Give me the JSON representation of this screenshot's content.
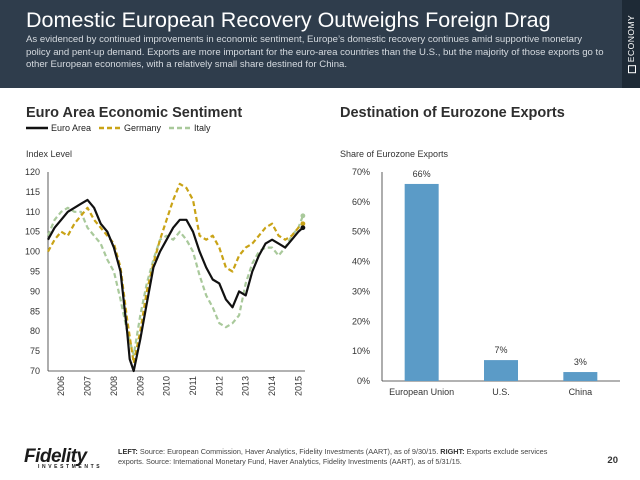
{
  "header": {
    "title": "Domestic European Recovery Outweighs Foreign Drag",
    "subtitle": "As evidenced by continued improvements in economic sentiment, Europe’s domestic recovery continues amid supportive monetary policy and pent-up demand. Exports are more important for the euro-area countries than the U.S., but the majority of those exports go to other European economies, with a relatively small share destined for China.",
    "side_label": "ECONOMY"
  },
  "footer": {
    "logo": "Fidelity",
    "logo_sub": "INVESTMENTS",
    "left_label": "LEFT:",
    "left_text": " Source: European Commission, Haver Analytics, Fidelity Investments (AART), as of 9/30/15. ",
    "right_label": "RIGHT:",
    "right_text": " Exports exclude services exports. Source: International Monetary Fund, Haver Analytics, Fidelity Investments (AART), as of 5/31/15.",
    "page_number": "20"
  },
  "colors": {
    "euro_area": "#111111",
    "germany": "#c9a316",
    "italy": "#a9c99b",
    "bar": "#5b9bc7",
    "header_bg": "#2f3d4c"
  },
  "chart_data": [
    {
      "type": "line",
      "title": "Euro Area Economic Sentiment",
      "ylabel": "Index Level",
      "xlabel": "",
      "ylim": [
        70,
        120
      ],
      "yticks": [
        70,
        75,
        80,
        85,
        90,
        95,
        100,
        105,
        110,
        115,
        120
      ],
      "xlim": [
        2006,
        2015.75
      ],
      "xticks": [
        "2006",
        "2007",
        "2008",
        "2009",
        "2010",
        "2011",
        "2012",
        "2013",
        "2014",
        "2015"
      ],
      "grid": false,
      "legend_position": "top-left",
      "series": [
        {
          "name": "Euro Area",
          "style": "solid",
          "x": [
            2006,
            2006.25,
            2006.5,
            2006.75,
            2007,
            2007.25,
            2007.5,
            2007.75,
            2008,
            2008.25,
            2008.5,
            2008.75,
            2009,
            2009.1,
            2009.25,
            2009.5,
            2009.75,
            2010,
            2010.25,
            2010.5,
            2010.75,
            2011,
            2011.25,
            2011.5,
            2011.75,
            2012,
            2012.25,
            2012.5,
            2012.75,
            2013,
            2013.25,
            2013.5,
            2013.75,
            2014,
            2014.25,
            2014.5,
            2014.75,
            2015,
            2015.25,
            2015.5,
            2015.67
          ],
          "values": [
            103,
            106,
            108,
            110,
            111,
            112,
            113,
            111,
            107,
            105,
            101,
            95,
            80,
            73,
            70,
            78,
            87,
            96,
            100,
            103,
            106,
            108,
            108,
            105,
            100,
            96,
            93,
            92,
            88,
            86,
            90,
            89,
            95,
            99,
            102,
            103,
            102,
            101,
            103,
            105,
            106
          ]
        },
        {
          "name": "Germany",
          "style": "dashed",
          "x": [
            2006,
            2006.25,
            2006.5,
            2006.75,
            2007,
            2007.25,
            2007.5,
            2007.75,
            2008,
            2008.25,
            2008.5,
            2008.75,
            2009,
            2009.25,
            2009.5,
            2009.75,
            2010,
            2010.25,
            2010.5,
            2010.75,
            2011,
            2011.25,
            2011.5,
            2011.75,
            2012,
            2012.25,
            2012.5,
            2012.75,
            2013,
            2013.25,
            2013.5,
            2013.75,
            2014,
            2014.25,
            2014.5,
            2014.75,
            2015,
            2015.25,
            2015.5,
            2015.67
          ],
          "values": [
            100,
            103,
            105,
            104,
            107,
            109,
            111,
            108,
            106,
            104,
            102,
            96,
            83,
            72,
            80,
            90,
            97,
            103,
            108,
            113,
            117,
            116,
            113,
            104,
            103,
            104,
            101,
            96,
            95,
            99,
            101,
            102,
            104,
            106,
            107,
            104,
            103,
            104,
            106,
            107
          ]
        },
        {
          "name": "Italy",
          "style": "dashed",
          "x": [
            2006,
            2006.25,
            2006.5,
            2006.75,
            2007,
            2007.25,
            2007.5,
            2007.75,
            2008,
            2008.25,
            2008.5,
            2008.75,
            2009,
            2009.25,
            2009.5,
            2009.75,
            2010,
            2010.25,
            2010.5,
            2010.75,
            2011,
            2011.25,
            2011.5,
            2011.75,
            2012,
            2012.25,
            2012.5,
            2012.75,
            2013,
            2013.25,
            2013.5,
            2013.75,
            2014,
            2014.25,
            2014.5,
            2014.75,
            2015,
            2015.25,
            2015.5,
            2015.67
          ],
          "values": [
            104,
            108,
            110,
            111,
            110,
            110,
            106,
            104,
            102,
            98,
            95,
            88,
            80,
            74,
            84,
            92,
            98,
            103,
            104,
            103,
            105,
            103,
            100,
            94,
            89,
            86,
            82,
            81,
            82,
            84,
            92,
            97,
            100,
            101,
            101,
            99,
            101,
            104,
            106,
            109
          ]
        }
      ]
    },
    {
      "type": "bar",
      "title": "Destination of Eurozone Exports",
      "ylabel": "Share of Eurozone Exports",
      "xlabel": "",
      "ylim": [
        0,
        70
      ],
      "yticks": [
        "0%",
        "10%",
        "20%",
        "30%",
        "40%",
        "50%",
        "60%",
        "70%"
      ],
      "categories": [
        "European Union",
        "U.S.",
        "China"
      ],
      "values": [
        66,
        7,
        3
      ],
      "labels": [
        "66%",
        "7%",
        "3%"
      ],
      "grid": false
    }
  ]
}
